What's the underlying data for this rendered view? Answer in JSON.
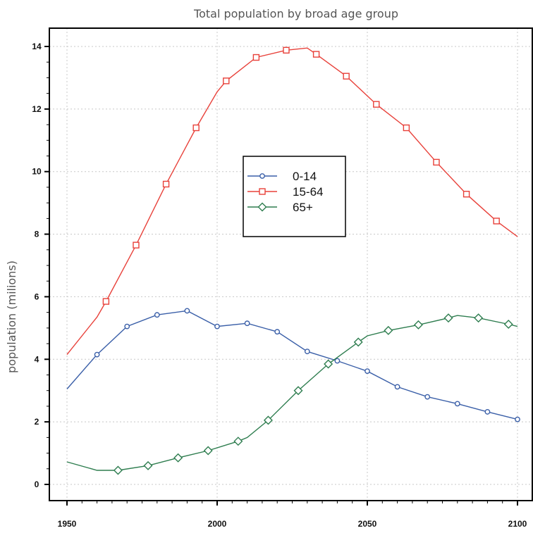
{
  "chart_data": {
    "type": "line",
    "title": "Total population by broad age group",
    "ylabel": "population (milions)",
    "xlabel": "",
    "xlim": [
      1950,
      2100
    ],
    "ylim": [
      -0.5,
      14.6
    ],
    "xticks": [
      1950,
      2000,
      2050,
      2100
    ],
    "yticks": [
      0,
      2,
      4,
      6,
      8,
      10,
      12,
      14
    ],
    "grid": true,
    "legend_position": "center",
    "series": [
      {
        "name": "0-14",
        "color": "#3a5fa8",
        "marker": "circle",
        "x": [
          1950,
          1960,
          1970,
          1980,
          1990,
          2000,
          2010,
          2020,
          2030,
          2040,
          2050,
          2060,
          2070,
          2080,
          2090,
          2100
        ],
        "y": [
          3.05,
          4.15,
          5.05,
          5.42,
          5.55,
          5.05,
          5.15,
          4.88,
          4.25,
          3.95,
          3.62,
          3.12,
          2.8,
          2.58,
          2.32,
          2.08
        ],
        "marker_x": [
          1960,
          1970,
          1980,
          1990,
          2000,
          2010,
          2020,
          2030,
          2040,
          2050,
          2060,
          2070,
          2080,
          2090,
          2100
        ]
      },
      {
        "name": "15-64",
        "color": "#e8413a",
        "marker": "square",
        "x": [
          1950,
          1960,
          1963,
          1973,
          1983,
          1993,
          2000,
          2003,
          2013,
          2023,
          2030,
          2033,
          2043,
          2053,
          2063,
          2073,
          2083,
          2093,
          2100
        ],
        "y": [
          4.15,
          5.35,
          5.85,
          7.65,
          9.6,
          11.4,
          12.55,
          12.9,
          13.65,
          13.88,
          13.95,
          13.75,
          13.05,
          12.15,
          11.4,
          10.3,
          9.28,
          8.42,
          7.92
        ],
        "marker_x": [
          1963,
          1973,
          1983,
          1993,
          2003,
          2013,
          2023,
          2033,
          2043,
          2053,
          2063,
          2073,
          2083,
          2093
        ]
      },
      {
        "name": "65+",
        "color": "#2e7d4f",
        "marker": "diamond",
        "x": [
          1950,
          1960,
          1967,
          1977,
          1987,
          1997,
          2007,
          2010,
          2017,
          2027,
          2037,
          2047,
          2050,
          2057,
          2067,
          2077,
          2080,
          2087,
          2097,
          2100
        ],
        "y": [
          0.72,
          0.45,
          0.45,
          0.6,
          0.85,
          1.08,
          1.38,
          1.5,
          2.05,
          3.0,
          3.85,
          4.55,
          4.75,
          4.92,
          5.1,
          5.32,
          5.4,
          5.32,
          5.12,
          5.05
        ],
        "marker_x": [
          1967,
          1977,
          1987,
          1997,
          2007,
          2017,
          2027,
          2037,
          2047,
          2057,
          2067,
          2077,
          2087,
          2097
        ]
      }
    ]
  }
}
